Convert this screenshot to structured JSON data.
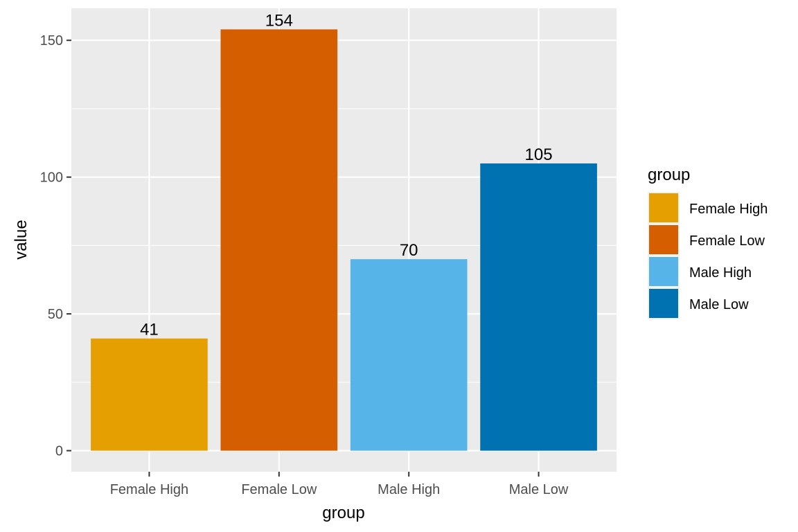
{
  "chart_data": {
    "type": "bar",
    "categories": [
      "Female High",
      "Female Low",
      "Male High",
      "Male Low"
    ],
    "values": [
      41,
      154,
      70,
      105
    ],
    "data_labels": [
      "41",
      "154",
      "70",
      "105"
    ],
    "colors": [
      "#E69F00",
      "#D55E00",
      "#56B4E9",
      "#0072B2"
    ],
    "title": "",
    "xlabel": "group",
    "ylabel": "value",
    "ylim": [
      -7.7,
      161.7
    ],
    "yticks": [
      0,
      50,
      100,
      150
    ],
    "ytick_labels": [
      "0",
      "50",
      "100",
      "150"
    ],
    "grid": true,
    "panel_background": "#EBEBEB",
    "legend": {
      "title": "group",
      "placement": "right",
      "entries": [
        "Female High",
        "Female Low",
        "Male High",
        "Male Low"
      ]
    }
  }
}
